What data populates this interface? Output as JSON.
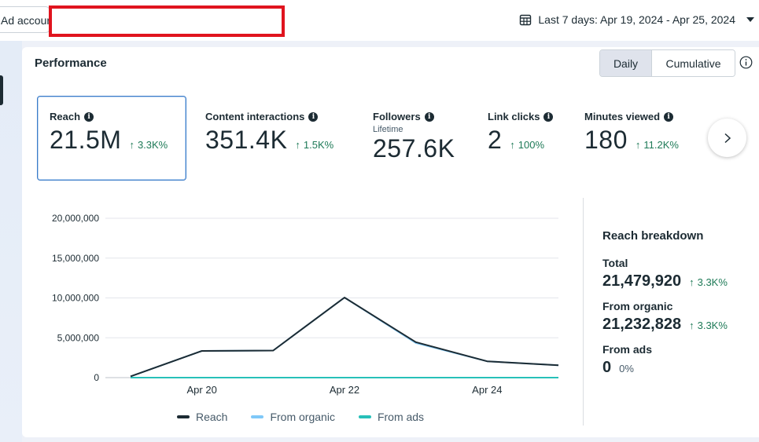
{
  "header": {
    "ad_account_label": "Ad accoun",
    "date_range_label": "Last 7 days: Apr 19, 2024 - Apr 25, 2024"
  },
  "performance": {
    "title": "Performance",
    "toggle": {
      "daily": "Daily",
      "cumulative": "Cumulative",
      "selected": "Daily"
    }
  },
  "metrics": [
    {
      "label": "Reach",
      "sublabel": "",
      "value": "21.5M",
      "delta": "3.3K%"
    },
    {
      "label": "Content interactions",
      "sublabel": "",
      "value": "351.4K",
      "delta": "1.5K%"
    },
    {
      "label": "Followers",
      "sublabel": "Lifetime",
      "value": "257.6K",
      "delta": ""
    },
    {
      "label": "Link clicks",
      "sublabel": "",
      "value": "2",
      "delta": "100%"
    },
    {
      "label": "Minutes viewed",
      "sublabel": "",
      "value": "180",
      "delta": "11.2K%"
    }
  ],
  "chart_data": {
    "type": "line",
    "x": [
      "Apr 19",
      "Apr 20",
      "Apr 21",
      "Apr 22",
      "Apr 23",
      "Apr 24",
      "Apr 25"
    ],
    "x_tick_labels": [
      "Apr 20",
      "Apr 22",
      "Apr 24"
    ],
    "y_tick_labels": [
      "20,000,000",
      "15,000,000",
      "10,000,000",
      "5,000,000",
      "0"
    ],
    "ylim": [
      0,
      20000000
    ],
    "grid": true,
    "legend_position": "bottom",
    "series": [
      {
        "name": "Reach",
        "color": "#1c2b33",
        "values": [
          150000,
          3350000,
          3400000,
          10050000,
          4450000,
          2050000,
          1550000
        ]
      },
      {
        "name": "From organic",
        "color": "#7fc8f8",
        "values": [
          150000,
          3350000,
          3400000,
          10050000,
          4350000,
          2050000,
          1550000
        ]
      },
      {
        "name": "From ads",
        "color": "#27c0b9",
        "values": [
          0,
          0,
          0,
          0,
          0,
          0,
          0
        ]
      }
    ]
  },
  "breakdown": {
    "title": "Reach breakdown",
    "items": [
      {
        "label": "Total",
        "value": "21,479,920",
        "delta": "3.3K%"
      },
      {
        "label": "From organic",
        "value": "21,232,828",
        "delta": "3.3K%"
      },
      {
        "label": "From ads",
        "value": "0",
        "delta": "0%"
      }
    ]
  }
}
